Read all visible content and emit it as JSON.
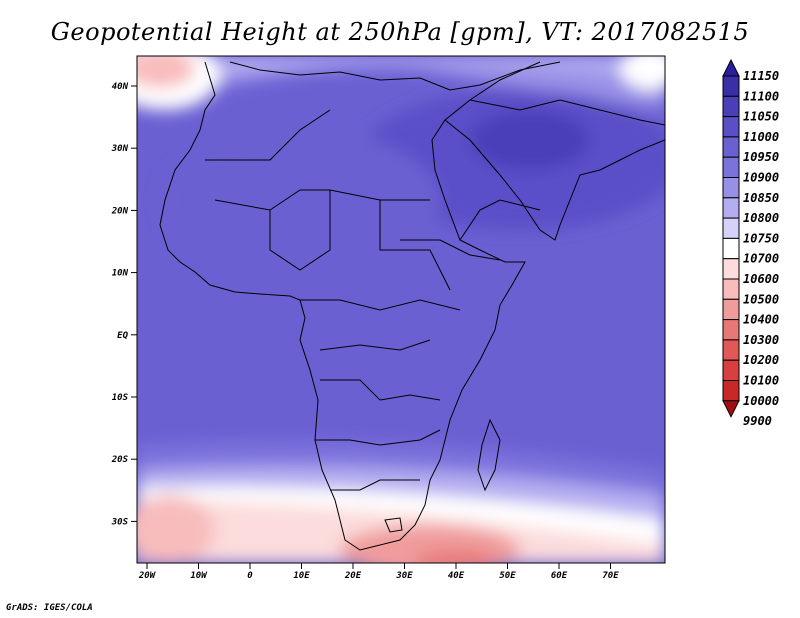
{
  "title": "Geopotential Height at 250hPa [gpm], VT: 2017082515",
  "credit": "GrADS: IGES/COLA",
  "lat_labels": [
    "40N",
    "30N",
    "20N",
    "10N",
    "EQ",
    "10S",
    "20S",
    "30S"
  ],
  "lon_labels": [
    "20W",
    "10W",
    "0",
    "10E",
    "20E",
    "30E",
    "40E",
    "50E",
    "60E",
    "70E"
  ],
  "colorbar": {
    "levels": [
      "11150",
      "11100",
      "11050",
      "11000",
      "10950",
      "10900",
      "10850",
      "10800",
      "10750",
      "10700",
      "10600",
      "10500",
      "10400",
      "10300",
      "10200",
      "10100",
      "10000",
      "9900"
    ],
    "colors": [
      "#2a1f9a",
      "#3a2fa8",
      "#4a3fb8",
      "#5a4fc8",
      "#6a60d2",
      "#7c72dc",
      "#9890e6",
      "#b4aef0",
      "#d4d2f8",
      "#ffffff",
      "#fcdcdc",
      "#f8bcbc",
      "#f09c9c",
      "#e87878",
      "#e05858",
      "#d84040",
      "#c82828",
      "#a01010"
    ]
  }
}
